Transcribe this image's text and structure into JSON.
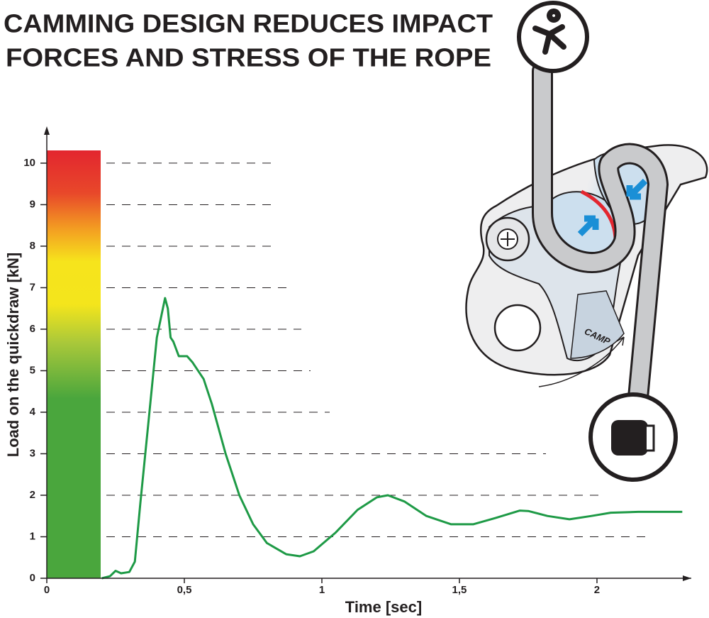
{
  "chart_data": {
    "type": "line",
    "title": [
      "CAMMING DESIGN REDUCES IMPACT",
      "FORCES AND STRESS OF THE ROPE"
    ],
    "x_label": "Time [sec]",
    "y_label": "Load on the quickdraw [kN]",
    "device_label": "CAMP",
    "color": "#1e9a46",
    "x": [
      0.2,
      0.23,
      0.25,
      0.27,
      0.3,
      0.32,
      0.34,
      0.37,
      0.4,
      0.43,
      0.44,
      0.45,
      0.46,
      0.48,
      0.51,
      0.53,
      0.57,
      0.6,
      0.65,
      0.7,
      0.75,
      0.8,
      0.87,
      0.92,
      0.97,
      1.05,
      1.13,
      1.2,
      1.24,
      1.3,
      1.38,
      1.47,
      1.55,
      1.63,
      1.72,
      1.75,
      1.82,
      1.9,
      1.98,
      2.05,
      2.15,
      2.31
    ],
    "values": [
      0,
      0.05,
      0.18,
      0.12,
      0.15,
      0.4,
      1.8,
      3.8,
      5.8,
      6.75,
      6.5,
      5.8,
      5.7,
      5.35,
      5.35,
      5.2,
      4.8,
      4.2,
      3.0,
      2.0,
      1.3,
      0.85,
      0.58,
      0.53,
      0.65,
      1.1,
      1.65,
      1.95,
      2.0,
      1.85,
      1.5,
      1.3,
      1.3,
      1.45,
      1.63,
      1.62,
      1.5,
      1.42,
      1.5,
      1.58,
      1.6,
      1.6
    ],
    "xlim": [
      0,
      2.34
    ],
    "ylim": [
      0,
      10.85
    ],
    "xticks": [
      0,
      {
        "value": 0.5,
        "label": "0,5"
      },
      1,
      {
        "value": 1.5,
        "label": "1,5"
      },
      2
    ],
    "yticks": [
      0,
      1,
      2,
      3,
      4,
      5,
      6,
      7,
      8,
      9,
      10
    ],
    "grid": true
  }
}
